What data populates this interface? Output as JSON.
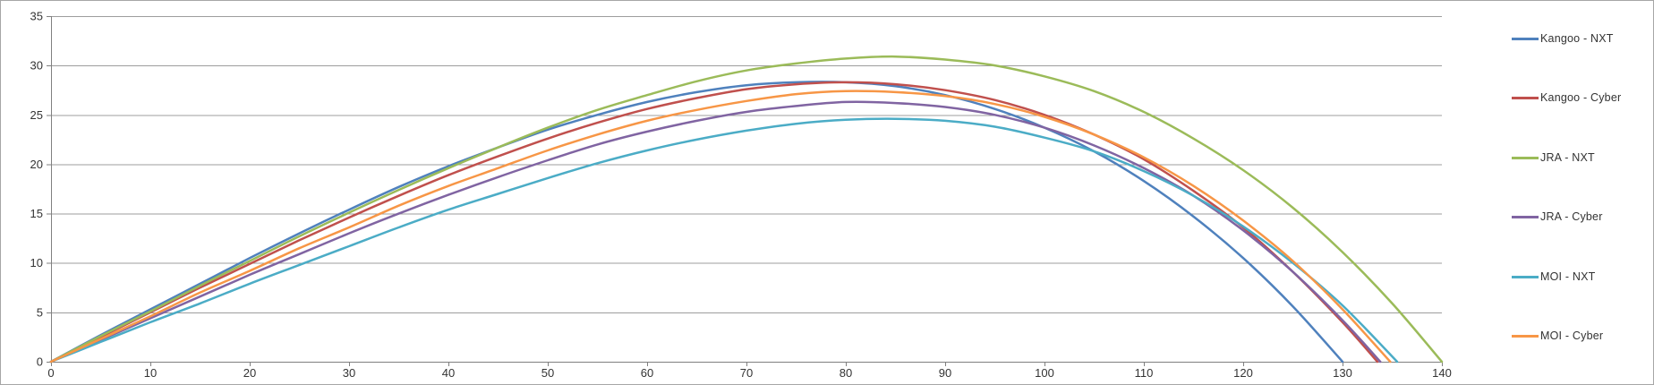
{
  "window": {
    "background": "#ffffff",
    "border_color": "#a6a6a6"
  },
  "chart_data": {
    "type": "line",
    "title": "",
    "xlabel": "",
    "ylabel": "",
    "xlim": [
      0,
      140
    ],
    "ylim": [
      0,
      35
    ],
    "x_ticks": [
      0,
      10,
      20,
      30,
      40,
      50,
      60,
      70,
      80,
      90,
      100,
      110,
      120,
      130,
      140
    ],
    "y_ticks": [
      0,
      5,
      10,
      15,
      20,
      25,
      30,
      35
    ],
    "grid": "horizontal gridlines every 5 units",
    "legend_position": "right",
    "axis_color": "#808080",
    "grid_color": "#9d9d9d",
    "tick_text_color": "#333333",
    "series": [
      {
        "name": "Kangoo - NXT",
        "color": "#4F81BD",
        "points": [
          [
            0,
            0
          ],
          [
            5,
            2.7
          ],
          [
            10,
            5.3
          ],
          [
            15,
            7.9
          ],
          [
            20,
            10.5
          ],
          [
            25,
            13.0
          ],
          [
            30,
            15.4
          ],
          [
            35,
            17.7
          ],
          [
            40,
            19.8
          ],
          [
            45,
            21.7
          ],
          [
            50,
            23.5
          ],
          [
            55,
            25.0
          ],
          [
            60,
            26.3
          ],
          [
            65,
            27.3
          ],
          [
            70,
            28.0
          ],
          [
            75,
            28.3
          ],
          [
            80,
            28.3
          ],
          [
            85,
            27.9
          ],
          [
            90,
            27.0
          ],
          [
            95,
            25.6
          ],
          [
            100,
            23.7
          ],
          [
            105,
            21.3
          ],
          [
            110,
            18.3
          ],
          [
            115,
            14.7
          ],
          [
            120,
            10.5
          ],
          [
            125,
            5.6
          ],
          [
            130,
            0
          ]
        ]
      },
      {
        "name": "Kangoo - Cyber",
        "color": "#C0504D",
        "points": [
          [
            0,
            0
          ],
          [
            5,
            2.5
          ],
          [
            10,
            5.0
          ],
          [
            15,
            7.5
          ],
          [
            20,
            9.9
          ],
          [
            25,
            12.3
          ],
          [
            30,
            14.6
          ],
          [
            35,
            16.8
          ],
          [
            40,
            18.9
          ],
          [
            45,
            20.8
          ],
          [
            50,
            22.6
          ],
          [
            55,
            24.2
          ],
          [
            60,
            25.6
          ],
          [
            65,
            26.7
          ],
          [
            70,
            27.6
          ],
          [
            75,
            28.1
          ],
          [
            80,
            28.3
          ],
          [
            85,
            28.1
          ],
          [
            90,
            27.5
          ],
          [
            95,
            26.5
          ],
          [
            100,
            25.0
          ],
          [
            105,
            23.0
          ],
          [
            110,
            20.5
          ],
          [
            115,
            17.3
          ],
          [
            120,
            13.6
          ],
          [
            125,
            9.1
          ],
          [
            130,
            4.0
          ],
          [
            133.5,
            0
          ]
        ]
      },
      {
        "name": "JRA - NXT",
        "color": "#9BBB59",
        "points": [
          [
            0,
            0
          ],
          [
            5,
            2.6
          ],
          [
            10,
            5.1
          ],
          [
            15,
            7.7
          ],
          [
            20,
            10.2
          ],
          [
            25,
            12.7
          ],
          [
            30,
            15.1
          ],
          [
            35,
            17.4
          ],
          [
            40,
            19.6
          ],
          [
            45,
            21.7
          ],
          [
            50,
            23.7
          ],
          [
            55,
            25.5
          ],
          [
            60,
            27.0
          ],
          [
            65,
            28.4
          ],
          [
            70,
            29.5
          ],
          [
            75,
            30.2
          ],
          [
            80,
            30.7
          ],
          [
            85,
            30.9
          ],
          [
            90,
            30.6
          ],
          [
            95,
            30.0
          ],
          [
            100,
            28.9
          ],
          [
            105,
            27.4
          ],
          [
            110,
            25.3
          ],
          [
            115,
            22.6
          ],
          [
            120,
            19.4
          ],
          [
            125,
            15.6
          ],
          [
            130,
            11.1
          ],
          [
            135,
            5.9
          ],
          [
            140,
            0
          ]
        ]
      },
      {
        "name": "JRA - Cyber",
        "color": "#8064A2",
        "points": [
          [
            0,
            0
          ],
          [
            5,
            2.2
          ],
          [
            10,
            4.4
          ],
          [
            15,
            6.6
          ],
          [
            20,
            8.8
          ],
          [
            25,
            10.9
          ],
          [
            30,
            13.0
          ],
          [
            35,
            15.0
          ],
          [
            40,
            16.9
          ],
          [
            45,
            18.7
          ],
          [
            50,
            20.4
          ],
          [
            55,
            22.0
          ],
          [
            60,
            23.3
          ],
          [
            65,
            24.4
          ],
          [
            70,
            25.3
          ],
          [
            75,
            25.9
          ],
          [
            80,
            26.3
          ],
          [
            85,
            26.2
          ],
          [
            90,
            25.8
          ],
          [
            95,
            25.0
          ],
          [
            100,
            23.7
          ],
          [
            105,
            21.9
          ],
          [
            110,
            19.6
          ],
          [
            115,
            16.8
          ],
          [
            120,
            13.3
          ],
          [
            125,
            9.1
          ],
          [
            130,
            4.2
          ],
          [
            133.8,
            0
          ]
        ]
      },
      {
        "name": "MOI - NXT",
        "color": "#4BACC6",
        "points": [
          [
            0,
            0
          ],
          [
            5,
            2.0
          ],
          [
            10,
            4.0
          ],
          [
            15,
            5.9
          ],
          [
            20,
            7.9
          ],
          [
            25,
            9.8
          ],
          [
            30,
            11.7
          ],
          [
            35,
            13.6
          ],
          [
            40,
            15.4
          ],
          [
            45,
            17.0
          ],
          [
            50,
            18.6
          ],
          [
            55,
            20.1
          ],
          [
            60,
            21.4
          ],
          [
            65,
            22.5
          ],
          [
            70,
            23.4
          ],
          [
            75,
            24.1
          ],
          [
            80,
            24.5
          ],
          [
            85,
            24.6
          ],
          [
            90,
            24.4
          ],
          [
            95,
            23.8
          ],
          [
            100,
            22.7
          ],
          [
            105,
            21.3
          ],
          [
            110,
            19.3
          ],
          [
            115,
            16.8
          ],
          [
            120,
            13.7
          ],
          [
            125,
            10.0
          ],
          [
            130,
            5.7
          ],
          [
            135.5,
            0
          ]
        ]
      },
      {
        "name": "MOI - Cyber",
        "color": "#F79646",
        "points": [
          [
            0,
            0
          ],
          [
            5,
            2.3
          ],
          [
            10,
            4.6
          ],
          [
            15,
            7.0
          ],
          [
            20,
            9.2
          ],
          [
            25,
            11.5
          ],
          [
            30,
            13.6
          ],
          [
            35,
            15.8
          ],
          [
            40,
            17.8
          ],
          [
            45,
            19.6
          ],
          [
            50,
            21.4
          ],
          [
            55,
            23.0
          ],
          [
            60,
            24.4
          ],
          [
            65,
            25.5
          ],
          [
            70,
            26.4
          ],
          [
            75,
            27.1
          ],
          [
            80,
            27.4
          ],
          [
            85,
            27.3
          ],
          [
            90,
            26.9
          ],
          [
            95,
            26.1
          ],
          [
            100,
            24.8
          ],
          [
            105,
            23.0
          ],
          [
            110,
            20.7
          ],
          [
            115,
            17.8
          ],
          [
            120,
            14.3
          ],
          [
            125,
            10.2
          ],
          [
            130,
            5.3
          ],
          [
            134.8,
            0
          ]
        ]
      }
    ]
  }
}
